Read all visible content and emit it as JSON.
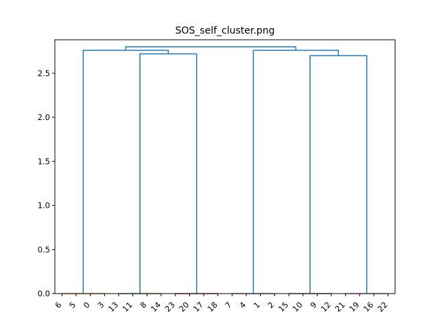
{
  "chart_data": {
    "type": "dendrogram",
    "title": "SOS_self_cluster.png",
    "xlabel": "",
    "ylabel": "",
    "ylim": [
      0,
      2.88
    ],
    "yticks": [
      "0.0",
      "0.5",
      "1.0",
      "1.5",
      "2.0",
      "2.5"
    ],
    "ytick_values": [
      0,
      0.5,
      1.0,
      1.5,
      2.0,
      2.5
    ],
    "leaves": [
      "6",
      "5",
      "0",
      "3",
      "13",
      "11",
      "8",
      "14",
      "23",
      "20",
      "17",
      "18",
      "7",
      "4",
      "1",
      "2",
      "15",
      "10",
      "9",
      "12",
      "21",
      "19",
      "16",
      "22"
    ],
    "leaf_groups": [
      {
        "leaves": [
          "6",
          "5",
          "0",
          "3"
        ],
        "color": "#ff7f0e"
      },
      {
        "leaves": [
          "13",
          "11",
          "8",
          "14"
        ],
        "color": "#2ca02c"
      },
      {
        "leaves": [
          "23",
          "20",
          "17",
          "18"
        ],
        "color": "#d62728"
      },
      {
        "leaves": [
          "7",
          "4",
          "1",
          "2"
        ],
        "color": "#9467bd"
      },
      {
        "leaves": [
          "15",
          "10",
          "9",
          "12"
        ],
        "color": "#8c564b"
      },
      {
        "leaves": [
          "21",
          "19",
          "16",
          "22"
        ],
        "color": "#e377c2"
      }
    ],
    "merges": [
      {
        "left_group": 0,
        "right_group": 1,
        "height": 2.76,
        "left_height": 0,
        "right_height": 2.72
      },
      {
        "left_group": 1,
        "right_group": 2,
        "height": 2.72,
        "left_height": 0,
        "right_height": 0
      },
      {
        "left_group": 3,
        "right_group": 4,
        "height": 2.76,
        "left_height": 0,
        "right_height": 2.7
      },
      {
        "left_group": 4,
        "right_group": 5,
        "height": 2.7,
        "left_height": 0,
        "right_height": 0
      },
      {
        "left_group": "A",
        "right_group": "B",
        "height": 2.8
      }
    ],
    "link_color": "#1f77b4"
  }
}
